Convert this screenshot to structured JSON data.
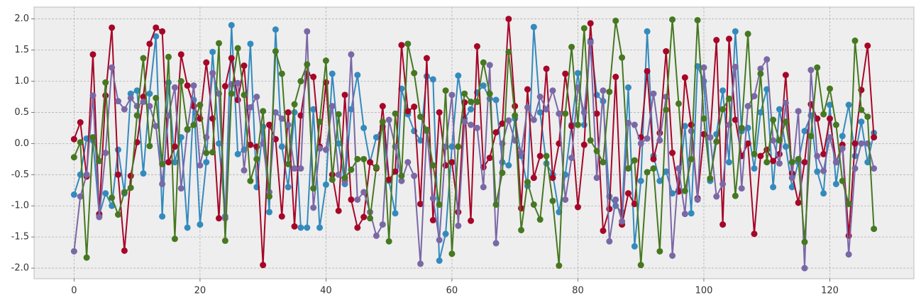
{
  "chart_data": {
    "type": "line",
    "x": [
      0,
      1,
      2,
      3,
      4,
      5,
      6,
      7,
      8,
      9,
      10,
      11,
      12,
      13,
      14,
      15,
      16,
      17,
      18,
      19,
      20,
      21,
      22,
      23,
      24,
      25,
      26,
      27,
      28,
      29,
      30,
      31,
      32,
      33,
      34,
      35,
      36,
      37,
      38,
      39,
      40,
      41,
      42,
      43,
      44,
      45,
      46,
      47,
      48,
      49,
      50,
      51,
      52,
      53,
      54,
      55,
      56,
      57,
      58,
      59,
      60,
      61,
      62,
      63,
      64,
      65,
      66,
      67,
      68,
      69,
      70,
      71,
      72,
      73,
      74,
      75,
      76,
      77,
      78,
      79,
      80,
      81,
      82,
      83,
      84,
      85,
      86,
      87,
      88,
      89,
      90,
      91,
      92,
      93,
      94,
      95,
      96,
      97,
      98,
      99,
      100,
      101,
      102,
      103,
      104,
      105,
      106,
      107,
      108,
      109,
      110,
      111,
      112,
      113,
      114,
      115,
      116,
      117,
      118,
      119,
      120,
      121,
      122,
      123,
      124,
      125,
      126,
      127
    ],
    "series": [
      {
        "color": "#348ABD",
        "values": [
          -0.82,
          -0.5,
          0.08,
          0.05,
          -1.15,
          -0.8,
          -1.0,
          -0.1,
          -0.8,
          0.8,
          0.85,
          -0.48,
          0.8,
          1.72,
          -1.17,
          0.98,
          -0.3,
          0.1,
          -1.35,
          0.7,
          -1.3,
          -0.3,
          1.47,
          0.0,
          -1.17,
          1.9,
          -0.17,
          -0.1,
          1.6,
          -0.7,
          0.27,
          -1.1,
          1.83,
          -0.05,
          -0.7,
          0.5,
          -1.35,
          -1.35,
          0.55,
          -1.35,
          -0.66,
          1.12,
          0.0,
          -0.65,
          0.55,
          1.1,
          0.25,
          -0.3,
          0.1,
          0.27,
          -0.6,
          -1.12,
          0.88,
          0.47,
          0.2,
          0.05,
          1.08,
          1.03,
          -1.88,
          -1.45,
          -0.05,
          1.09,
          0.4,
          0.55,
          0.82,
          0.93,
          0.72,
          0.7,
          -0.3,
          -0.35,
          0.4,
          -0.2,
          -0.68,
          1.87,
          0.5,
          -0.32,
          -0.5,
          -1.1,
          -0.5,
          0.3,
          1.13,
          0.3,
          1.65,
          0.78,
          0.68,
          -0.85,
          -1.0,
          -1.1,
          0.9,
          -1.65,
          -0.6,
          1.8,
          -0.2,
          -0.6,
          -0.45,
          -0.8,
          -0.75,
          0.28,
          -1.12,
          1.24,
          1.0,
          -0.6,
          0.15,
          0.85,
          -0.3,
          1.8,
          0.2,
          0.25,
          -0.4,
          0.5,
          0.87,
          -0.7,
          0.55,
          -0.05,
          -0.7,
          -0.3,
          0.2,
          0.45,
          -0.45,
          -0.8,
          0.62,
          -0.65,
          0.12,
          0.62,
          -0.2,
          0.35,
          -0.3,
          0.17
        ]
      },
      {
        "color": "#A60628",
        "values": [
          0.07,
          0.34,
          -0.53,
          1.43,
          -1.13,
          0.77,
          1.86,
          -0.5,
          -1.72,
          -0.52,
          0.02,
          0.75,
          1.6,
          1.86,
          1.8,
          -0.3,
          -0.05,
          1.43,
          0.93,
          0.6,
          0.4,
          1.3,
          0.4,
          -1.2,
          0.92,
          1.37,
          0.7,
          1.25,
          -0.02,
          -0.05,
          -1.95,
          0.3,
          0.07,
          -1.17,
          0.5,
          -1.33,
          0.45,
          1.12,
          1.07,
          -0.05,
          0.98,
          -0.5,
          -1.08,
          0.78,
          -0.9,
          -1.35,
          -1.18,
          -0.3,
          -0.4,
          0.6,
          -0.58,
          -0.45,
          1.58,
          0.52,
          0.59,
          -0.97,
          1.37,
          -1.23,
          0.5,
          -0.35,
          -0.3,
          -1.1,
          0.66,
          -1.24,
          1.56,
          -0.38,
          -0.23,
          0.18,
          0.32,
          2.0,
          0.6,
          -1.04,
          0.87,
          -0.55,
          -0.2,
          1.2,
          -0.55,
          0.0,
          1.12,
          0.28,
          -1.02,
          -0.02,
          1.93,
          0.48,
          -1.4,
          -1.05,
          1.07,
          -1.3,
          -0.8,
          -0.97,
          0.1,
          1.16,
          -0.25,
          0.17,
          1.48,
          -0.15,
          -0.77,
          1.06,
          0.3,
          -0.88,
          0.15,
          0.1,
          1.66,
          -1.3,
          1.68,
          0.38,
          -0.2,
          0.0,
          -1.45,
          -0.2,
          -0.1,
          -0.28,
          -0.17,
          1.1,
          -0.48,
          -0.95,
          -0.3,
          0.63,
          0.4,
          -0.17,
          0.4,
          -0.3,
          -0.02,
          -1.48,
          0.0,
          0.86,
          1.57,
          0.1
        ]
      },
      {
        "color": "#7A68A6",
        "values": [
          -1.73,
          -0.85,
          -0.5,
          0.77,
          -1.18,
          -0.15,
          1.22,
          0.68,
          0.55,
          0.73,
          0.6,
          0.67,
          0.6,
          0.28,
          -0.65,
          0.45,
          0.9,
          -0.72,
          0.22,
          0.93,
          -0.35,
          0.1,
          1.13,
          0.8,
          -1.2,
          0.95,
          0.97,
          -0.43,
          0.58,
          0.75,
          0.0,
          -0.78,
          0.5,
          0.4,
          0.3,
          -0.4,
          -0.4,
          1.8,
          -1.03,
          -0.08,
          -0.1,
          0.6,
          -0.5,
          -0.6,
          1.43,
          -0.9,
          -0.78,
          -1.1,
          -1.48,
          -1.3,
          0.38,
          -0.05,
          -0.6,
          -0.3,
          -0.52,
          -1.93,
          0.2,
          -0.88,
          -1.55,
          -0.05,
          0.78,
          -1.32,
          0.35,
          0.3,
          0.25,
          -0.7,
          1.26,
          -1.6,
          0.0,
          0.37,
          0.05,
          -0.15,
          0.58,
          0.38,
          0.75,
          0.55,
          0.85,
          0.48,
          -0.9,
          -0.23,
          0.9,
          0.5,
          1.62,
          -0.55,
          0.85,
          -1.57,
          -0.9,
          -1.25,
          0.33,
          0.3,
          0.0,
          0.08,
          0.8,
          0.05,
          0.75,
          -1.8,
          -0.4,
          -1.13,
          0.2,
          -0.9,
          1.22,
          0.1,
          -0.85,
          -0.65,
          0.3,
          1.23,
          -0.72,
          0.6,
          0.76,
          1.2,
          1.35,
          0.05,
          -0.32,
          0.65,
          -0.55,
          0.52,
          -2.0,
          1.18,
          -0.2,
          -0.44,
          0.1,
          -0.3,
          -0.08,
          -1.78,
          -0.4,
          0.0,
          0.0,
          -0.4
        ]
      },
      {
        "color": "#467821",
        "values": [
          -0.22,
          0.02,
          -1.83,
          0.1,
          -0.28,
          0.98,
          -0.87,
          -1.14,
          -0.78,
          -0.71,
          0.45,
          1.37,
          -0.04,
          0.73,
          -0.33,
          1.39,
          -1.53,
          1.0,
          0.23,
          0.3,
          0.62,
          -0.15,
          -0.14,
          1.61,
          -1.56,
          0.8,
          1.53,
          0.78,
          -0.6,
          -0.25,
          0.52,
          -0.85,
          1.48,
          1.12,
          -0.33,
          0.63,
          1.0,
          1.27,
          -0.72,
          0.35,
          1.33,
          -0.58,
          0.47,
          -0.55,
          -0.42,
          -0.25,
          -0.25,
          -1.2,
          -0.38,
          0.35,
          -1.57,
          0.48,
          -0.52,
          1.6,
          1.13,
          0.43,
          0.22,
          -0.35,
          -0.98,
          0.85,
          -1.77,
          -0.05,
          0.8,
          0.67,
          0.67,
          1.3,
          0.8,
          -0.98,
          -0.47,
          1.47,
          0.45,
          -1.39,
          -0.62,
          -0.98,
          -1.22,
          -0.2,
          -0.92,
          -1.96,
          0.48,
          1.55,
          0.3,
          1.85,
          0.05,
          -0.12,
          -0.3,
          0.83,
          1.97,
          1.38,
          -0.4,
          -0.27,
          -1.95,
          -0.46,
          -0.4,
          -1.73,
          0.54,
          1.99,
          0.64,
          -0.76,
          -0.25,
          1.98,
          0.4,
          -0.56,
          0.03,
          0.55,
          0.72,
          -0.84,
          0.25,
          1.76,
          -0.17,
          1.12,
          -0.3,
          0.38,
          0.05,
          0.35,
          -0.3,
          -0.25,
          -1.58,
          0.12,
          1.22,
          0.47,
          0.88,
          0.3,
          -0.6,
          -0.97,
          1.65,
          0.54,
          0.43,
          -1.37
        ]
      }
    ],
    "xlim": [
      -6.35,
      133.35
    ],
    "xticks": [
      0,
      20,
      40,
      60,
      80,
      100,
      120
    ],
    "ylim": [
      -2.17,
      2.19
    ],
    "yticks": [
      {
        "value": -2,
        "label": "-2.0"
      },
      -1.5,
      {
        "value": -1,
        "label": "-1.0"
      },
      -0.5,
      {
        "value": 0,
        "label": "0.0"
      },
      0.5,
      {
        "value": 1,
        "label": "1.0"
      },
      1.5,
      {
        "value": 2,
        "label": "2.0"
      }
    ],
    "grid": true
  }
}
